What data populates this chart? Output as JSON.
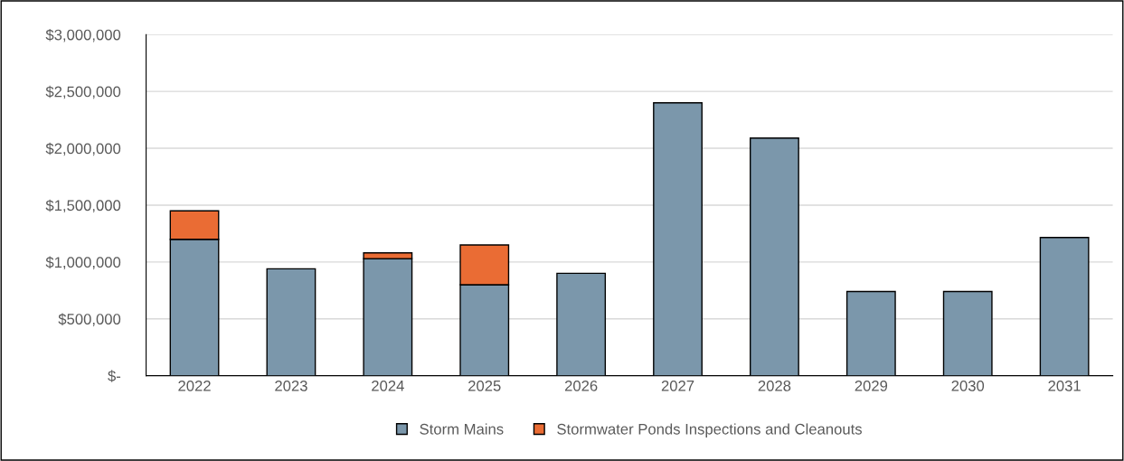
{
  "chart_data": {
    "type": "bar",
    "stacked": true,
    "categories": [
      "2022",
      "2023",
      "2024",
      "2025",
      "2026",
      "2027",
      "2028",
      "2029",
      "2030",
      "2031"
    ],
    "series": [
      {
        "name": "Storm Mains",
        "color": "#7b97ab",
        "values": [
          1200000,
          940000,
          1030000,
          800000,
          900000,
          2400000,
          2090000,
          740000,
          740000,
          1215000
        ]
      },
      {
        "name": "Stormwater Ponds Inspections and Cleanouts",
        "color": "#ea6c34",
        "values": [
          250000,
          null,
          50000,
          350000,
          null,
          null,
          null,
          null,
          null,
          null
        ]
      }
    ],
    "ylim": [
      0,
      3000000
    ],
    "yticks": [
      {
        "value": 0,
        "label": "$-"
      },
      {
        "value": 500000,
        "label": "$500,000"
      },
      {
        "value": 1000000,
        "label": "$1,000,000"
      },
      {
        "value": 1500000,
        "label": "$1,500,000"
      },
      {
        "value": 2000000,
        "label": "$2,000,000"
      },
      {
        "value": 2500000,
        "label": "$2,500,000"
      },
      {
        "value": 3000000,
        "label": "$3,000,000"
      }
    ],
    "grid": "y",
    "legend": "bottom"
  }
}
